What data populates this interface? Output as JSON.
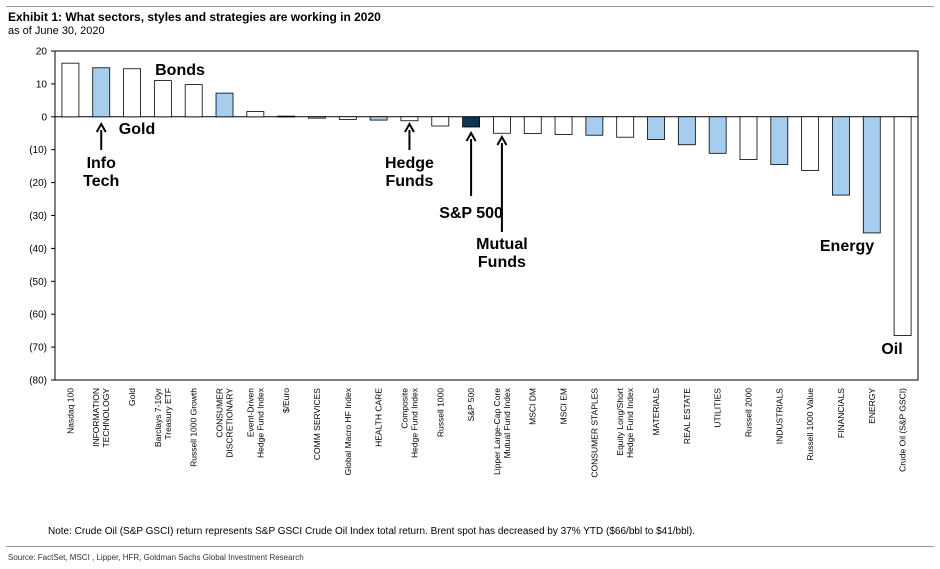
{
  "header": {
    "title": "Exhibit 1: What sectors, styles and strategies are working in 2020",
    "subtitle": "as of June 30, 2020"
  },
  "footer": {
    "note": "Note: Crude Oil (S&P GSCI) return represents S&P GSCI Crude Oil Index total return. Brent spot has decreased by 37% YTD ($66/bbl to $41/bbl).",
    "source": "Source: FactSet, MSCI , Lipper, HFR, Goldman Sachs Global Investment Research"
  },
  "colors": {
    "sector_fill": "#a6cdee",
    "sp500_fill": "#0f3556",
    "other_fill": "#ffffff",
    "bar_stroke": "#000000"
  },
  "chart_data": {
    "type": "bar",
    "title": "Exhibit 1: What sectors, styles and strategies are working in 2020",
    "subtitle": "as of June 30, 2020",
    "xlabel": "",
    "ylabel": "",
    "ylim": [
      -80,
      20
    ],
    "yticks": [
      20,
      10,
      0,
      -10,
      -20,
      -30,
      -40,
      -50,
      -60,
      -70,
      -80
    ],
    "ytick_labels": [
      "20",
      "10",
      "0",
      "(10)",
      "(20)",
      "(30)",
      "(40)",
      "(50)",
      "(60)",
      "(70)",
      "(80)"
    ],
    "grid": false,
    "legend": "none",
    "categories": [
      "Nasdaq 100",
      "INFORMATION TECHNOLOGY",
      "Gold",
      "Barclays 7-10yr Treasury ETF",
      "Russell 1000 Growth",
      "CONSUMER DISCRETIONARY",
      "Event-Driven Hedge Fund Index",
      "$/Euro",
      "COMM SERVICES",
      "Global Macro HF Index",
      "HEALTH CARE",
      "Composite Hedge Fund Index",
      "Russell 1000",
      "S&P 500",
      "Lipper Large-Cap Core Mutual Fund Index",
      "MSCI DM",
      "MSCI EM",
      "CONSUMER STAPLES",
      "Equity Long/Short Hedge Fund Index",
      "MATERIALS",
      "REAL ESTATE",
      "UTILITIES",
      "Russell 2000",
      "INDUSTRIALS",
      "Russell 1000 Value",
      "FINANCIALS",
      "ENERGY",
      "Crude Oil (S&P GSCI)"
    ],
    "category_lines": [
      [
        "Nasdaq 100"
      ],
      [
        "INFORMATION",
        "TECHNOLOGY"
      ],
      [
        "Gold"
      ],
      [
        "Barclays 7-10yr",
        "Treasury ETF"
      ],
      [
        "Russell 1000 Growth"
      ],
      [
        "CONSUMER",
        "DISCRETIONARY"
      ],
      [
        "Event-Driven",
        "Hedge Fund Index"
      ],
      [
        "$/Euro"
      ],
      [
        "COMM SERVICES"
      ],
      [
        "Global Macro HF Index"
      ],
      [
        "HEALTH CARE"
      ],
      [
        "Composite",
        "Hedge Fund Index"
      ],
      [
        "Russell 1000"
      ],
      [
        "S&P 500"
      ],
      [
        "Lipper Large-Cap Core",
        "Mutual Fund Index"
      ],
      [
        "MSCI DM"
      ],
      [
        "MSCI EM"
      ],
      [
        "CONSUMER STAPLES"
      ],
      [
        "Equity Long/Short",
        "Hedge Fund Index"
      ],
      [
        "MATERIALS"
      ],
      [
        "REAL ESTATE"
      ],
      [
        "UTILITIES"
      ],
      [
        "Russell 2000"
      ],
      [
        "INDUSTRIALS"
      ],
      [
        "Russell 1000 Value"
      ],
      [
        "FINANCIALS"
      ],
      [
        "ENERGY"
      ],
      [
        "Crude Oil (S&P GSCI)"
      ]
    ],
    "values": [
      16.3,
      14.9,
      14.6,
      11.0,
      9.8,
      7.2,
      1.6,
      0.2,
      -0.4,
      -0.8,
      -1.0,
      -1.2,
      -2.8,
      -3.1,
      -5.0,
      -5.1,
      -5.4,
      -5.6,
      -6.2,
      -6.9,
      -8.5,
      -11.1,
      -13.0,
      -14.5,
      -16.3,
      -23.8,
      -35.3,
      -66.5
    ],
    "bar_kind": [
      "other",
      "sector",
      "other",
      "other",
      "other",
      "sector",
      "other",
      "other",
      "sector",
      "other",
      "sector",
      "other",
      "other",
      "sp500",
      "other",
      "other",
      "other",
      "sector",
      "other",
      "sector",
      "sector",
      "sector",
      "other",
      "sector",
      "other",
      "sector",
      "sector",
      "other"
    ],
    "annotations": [
      {
        "lines": [
          "Info",
          "Tech"
        ],
        "target": "INFORMATION TECHNOLOGY",
        "arrow": true
      },
      {
        "lines": [
          "Gold"
        ],
        "target": "Gold",
        "arrow": false
      },
      {
        "lines": [
          "Bonds"
        ],
        "target": "Barclays 7-10yr Treasury ETF",
        "arrow": false
      },
      {
        "lines": [
          "Hedge",
          "Funds"
        ],
        "target": "Composite Hedge Fund Index",
        "arrow": true
      },
      {
        "lines": [
          "S&P 500"
        ],
        "target": "S&P 500",
        "arrow": true
      },
      {
        "lines": [
          "Mutual",
          "Funds"
        ],
        "target": "Lipper Large-Cap Core Mutual Fund Index",
        "arrow": true
      },
      {
        "lines": [
          "Energy"
        ],
        "target": "ENERGY",
        "arrow": false
      },
      {
        "lines": [
          "Oil"
        ],
        "target": "Crude Oil (S&P GSCI)",
        "arrow": false
      }
    ]
  }
}
